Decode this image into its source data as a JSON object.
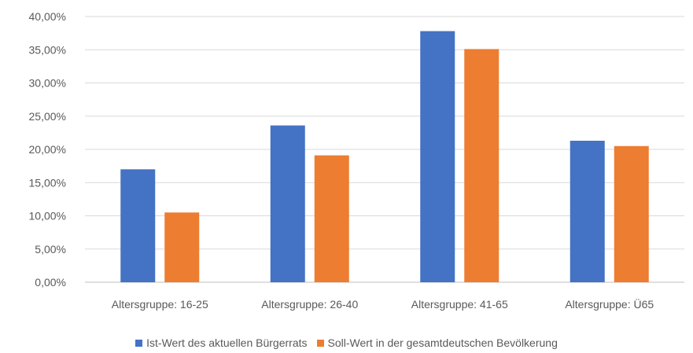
{
  "chart_data": {
    "type": "bar",
    "categories": [
      "Altersgruppe: 16-25",
      "Altersgruppe: 26-40",
      "Altersgruppe: 41-65",
      "Altersgruppe: Ü65"
    ],
    "series": [
      {
        "name": "Ist-Wert des aktuellen Bürgerrats",
        "color": "#4472C4",
        "values": [
          17.0,
          23.6,
          37.8,
          21.3
        ]
      },
      {
        "name": "Soll-Wert in der gesamtdeutschen Bevölkerung",
        "color": "#ED7D31",
        "values": [
          10.5,
          19.1,
          35.1,
          20.5
        ]
      }
    ],
    "ylim": [
      0,
      40
    ],
    "yticks": [
      "0,00%",
      "5,00%",
      "10,00%",
      "15,00%",
      "20,00%",
      "25,00%",
      "30,00%",
      "35,00%",
      "40,00%"
    ],
    "grid": true,
    "legend_position": "bottom",
    "title": "",
    "xlabel": "",
    "ylabel": ""
  }
}
